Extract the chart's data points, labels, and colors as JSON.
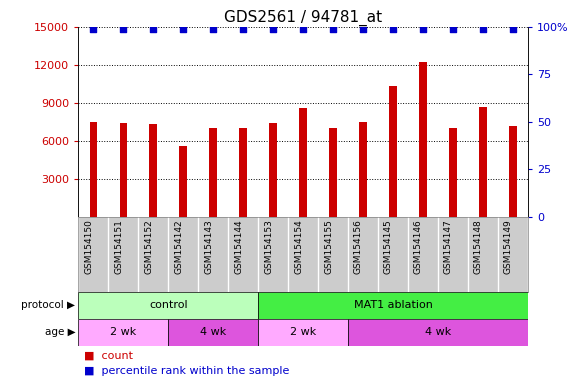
{
  "title": "GDS2561 / 94781_at",
  "samples": [
    "GSM154150",
    "GSM154151",
    "GSM154152",
    "GSM154142",
    "GSM154143",
    "GSM154144",
    "GSM154153",
    "GSM154154",
    "GSM154155",
    "GSM154156",
    "GSM154145",
    "GSM154146",
    "GSM154147",
    "GSM154148",
    "GSM154149"
  ],
  "counts": [
    7500,
    7400,
    7300,
    5600,
    7000,
    7000,
    7400,
    8600,
    7000,
    7500,
    10300,
    12200,
    7000,
    8700,
    7200
  ],
  "percentile_ranks": [
    99,
    99,
    99,
    99,
    99,
    99,
    99,
    99,
    99,
    99,
    99,
    99,
    99,
    99,
    99
  ],
  "bar_color": "#cc0000",
  "dot_color": "#0000cc",
  "ylim_left": [
    0,
    15000
  ],
  "ylim_right": [
    0,
    100
  ],
  "yticks_left": [
    3000,
    6000,
    9000,
    12000,
    15000
  ],
  "ytick_labels_left": [
    "3000",
    "6000",
    "9000",
    "12000",
    "15000"
  ],
  "yticks_right": [
    0,
    25,
    50,
    75,
    100
  ],
  "ytick_labels_right": [
    "0",
    "25",
    "50",
    "75",
    "100%"
  ],
  "grid_linestyle": "dotted",
  "xticklabel_bg": "#cccccc",
  "protocol_groups": [
    {
      "label": "control",
      "start": 0,
      "end": 6,
      "color": "#bbffbb"
    },
    {
      "label": "MAT1 ablation",
      "start": 6,
      "end": 15,
      "color": "#44ee44"
    }
  ],
  "age_groups": [
    {
      "label": "2 wk",
      "start": 0,
      "end": 3,
      "color": "#ffaaff"
    },
    {
      "label": "4 wk",
      "start": 3,
      "end": 6,
      "color": "#dd55dd"
    },
    {
      "label": "2 wk",
      "start": 6,
      "end": 9,
      "color": "#ffaaff"
    },
    {
      "label": "4 wk",
      "start": 9,
      "end": 15,
      "color": "#dd55dd"
    }
  ],
  "protocol_label": "protocol",
  "age_label": "age",
  "legend_count_label": "count",
  "legend_pct_label": "percentile rank within the sample",
  "title_fontsize": 11,
  "tick_fontsize": 8,
  "bar_width": 0.25
}
